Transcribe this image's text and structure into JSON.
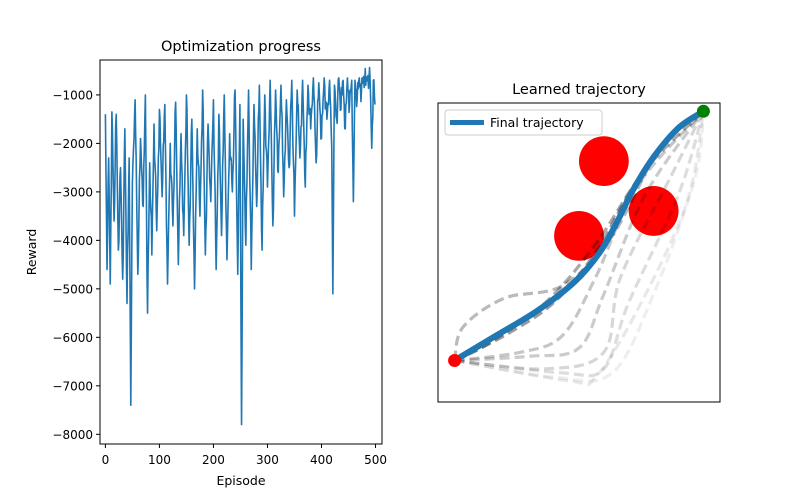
{
  "chart_data": [
    {
      "type": "line",
      "title": "Optimization progress",
      "xlabel": "Episode",
      "ylabel": "Reward",
      "xlim": [
        -10,
        512
      ],
      "ylim": [
        -8200,
        -280
      ],
      "xticks": [
        0,
        100,
        200,
        300,
        400,
        500
      ],
      "yticks": [
        -8000,
        -7000,
        -6000,
        -5000,
        -4000,
        -3000,
        -2000,
        -1000
      ],
      "grid": false,
      "color": "#1f77b4",
      "series": [
        {
          "episodes": 500,
          "anchors": [
            {
              "x": 0,
              "y": -1400
            },
            {
              "x": 3,
              "y": -4600
            },
            {
              "x": 6,
              "y": -2300
            },
            {
              "x": 9,
              "y": -4900
            },
            {
              "x": 12,
              "y": -1350
            },
            {
              "x": 16,
              "y": -3600
            },
            {
              "x": 20,
              "y": -1400
            },
            {
              "x": 24,
              "y": -4200
            },
            {
              "x": 28,
              "y": -2500
            },
            {
              "x": 32,
              "y": -4800
            },
            {
              "x": 36,
              "y": -1700
            },
            {
              "x": 40,
              "y": -5300
            },
            {
              "x": 44,
              "y": -2300
            },
            {
              "x": 47,
              "y": -7400
            },
            {
              "x": 50,
              "y": -2800
            },
            {
              "x": 55,
              "y": -1100
            },
            {
              "x": 60,
              "y": -4700
            },
            {
              "x": 65,
              "y": -1900
            },
            {
              "x": 70,
              "y": -3300
            },
            {
              "x": 74,
              "y": -1000
            },
            {
              "x": 78,
              "y": -5500
            },
            {
              "x": 82,
              "y": -2400
            },
            {
              "x": 86,
              "y": -4300
            },
            {
              "x": 90,
              "y": -1600
            },
            {
              "x": 95,
              "y": -3800
            },
            {
              "x": 100,
              "y": -1300
            },
            {
              "x": 105,
              "y": -3100
            },
            {
              "x": 110,
              "y": -1200
            },
            {
              "x": 115,
              "y": -4900
            },
            {
              "x": 120,
              "y": -2000
            },
            {
              "x": 125,
              "y": -3700
            },
            {
              "x": 130,
              "y": -1150
            },
            {
              "x": 135,
              "y": -4500
            },
            {
              "x": 140,
              "y": -1800
            },
            {
              "x": 145,
              "y": -3900
            },
            {
              "x": 150,
              "y": -1000
            },
            {
              "x": 155,
              "y": -4100
            },
            {
              "x": 160,
              "y": -1500
            },
            {
              "x": 165,
              "y": -5000
            },
            {
              "x": 170,
              "y": -1700
            },
            {
              "x": 175,
              "y": -3500
            },
            {
              "x": 180,
              "y": -900
            },
            {
              "x": 185,
              "y": -4300
            },
            {
              "x": 190,
              "y": -1600
            },
            {
              "x": 195,
              "y": -3200
            },
            {
              "x": 200,
              "y": -1100
            },
            {
              "x": 205,
              "y": -4600
            },
            {
              "x": 210,
              "y": -1400
            },
            {
              "x": 215,
              "y": -3900
            },
            {
              "x": 220,
              "y": -1000
            },
            {
              "x": 225,
              "y": -4400
            },
            {
              "x": 230,
              "y": -1800
            },
            {
              "x": 235,
              "y": -3000
            },
            {
              "x": 240,
              "y": -900
            },
            {
              "x": 245,
              "y": -4700
            },
            {
              "x": 249,
              "y": -1200
            },
            {
              "x": 252,
              "y": -7800
            },
            {
              "x": 255,
              "y": -1500
            },
            {
              "x": 260,
              "y": -4100
            },
            {
              "x": 265,
              "y": -900
            },
            {
              "x": 270,
              "y": -4600
            },
            {
              "x": 275,
              "y": -1200
            },
            {
              "x": 280,
              "y": -3300
            },
            {
              "x": 285,
              "y": -800
            },
            {
              "x": 290,
              "y": -4200
            },
            {
              "x": 295,
              "y": -1000
            },
            {
              "x": 300,
              "y": -2900
            },
            {
              "x": 305,
              "y": -700
            },
            {
              "x": 310,
              "y": -3700
            },
            {
              "x": 315,
              "y": -900
            },
            {
              "x": 320,
              "y": -2600
            },
            {
              "x": 325,
              "y": -800
            },
            {
              "x": 330,
              "y": -3100
            },
            {
              "x": 335,
              "y": -1100
            },
            {
              "x": 340,
              "y": -2500
            },
            {
              "x": 345,
              "y": -700
            },
            {
              "x": 350,
              "y": -3500
            },
            {
              "x": 355,
              "y": -900
            },
            {
              "x": 360,
              "y": -2300
            },
            {
              "x": 365,
              "y": -700
            },
            {
              "x": 370,
              "y": -2900
            },
            {
              "x": 375,
              "y": -800
            },
            {
              "x": 380,
              "y": -1700
            },
            {
              "x": 385,
              "y": -650
            },
            {
              "x": 390,
              "y": -2400
            },
            {
              "x": 395,
              "y": -750
            },
            {
              "x": 400,
              "y": -1900
            },
            {
              "x": 405,
              "y": -650
            },
            {
              "x": 410,
              "y": -1500
            },
            {
              "x": 415,
              "y": -700
            },
            {
              "x": 419,
              "y": -2100
            },
            {
              "x": 421,
              "y": -5100
            },
            {
              "x": 424,
              "y": -800
            },
            {
              "x": 428,
              "y": -1500
            },
            {
              "x": 432,
              "y": -650
            },
            {
              "x": 436,
              "y": -1300
            },
            {
              "x": 440,
              "y": -700
            },
            {
              "x": 444,
              "y": -1700
            },
            {
              "x": 448,
              "y": -650
            },
            {
              "x": 452,
              "y": -1200
            },
            {
              "x": 456,
              "y": -700
            },
            {
              "x": 459,
              "y": -3200
            },
            {
              "x": 462,
              "y": -700
            },
            {
              "x": 466,
              "y": -1100
            },
            {
              "x": 470,
              "y": -650
            },
            {
              "x": 474,
              "y": -900
            },
            {
              "x": 478,
              "y": -620
            },
            {
              "x": 482,
              "y": -800
            },
            {
              "x": 486,
              "y": -600
            },
            {
              "x": 490,
              "y": -700
            },
            {
              "x": 493,
              "y": -2100
            },
            {
              "x": 496,
              "y": -700
            },
            {
              "x": 499,
              "y": -1200
            }
          ]
        }
      ]
    },
    {
      "type": "line",
      "title": "Learned trajectory",
      "xlim": [
        -0.1,
        3.3
      ],
      "ylim": [
        -0.5,
        3.1
      ],
      "axis_ticks": false,
      "legend": {
        "label": "Final trajectory",
        "placement": "top-left"
      },
      "start": {
        "x": 0.1,
        "y": 0.0,
        "color": "#ff0000"
      },
      "goal": {
        "x": 3.1,
        "y": 3.0,
        "color": "#008000"
      },
      "obstacles": [
        {
          "x": 1.9,
          "y": 2.4,
          "r": 0.3,
          "color": "#ff0000"
        },
        {
          "x": 1.6,
          "y": 1.5,
          "r": 0.3,
          "color": "#ff0000"
        },
        {
          "x": 2.5,
          "y": 1.8,
          "r": 0.3,
          "color": "#ff0000"
        }
      ],
      "final_trajectory": {
        "color": "#1f77b4",
        "points": [
          [
            0.1,
            0.0
          ],
          [
            0.6,
            0.3
          ],
          [
            1.1,
            0.6
          ],
          [
            1.55,
            0.95
          ],
          [
            1.85,
            1.3
          ],
          [
            2.05,
            1.65
          ],
          [
            2.25,
            2.05
          ],
          [
            2.5,
            2.45
          ],
          [
            2.8,
            2.8
          ],
          [
            3.1,
            3.0
          ]
        ]
      },
      "candidate_trajectories": [
        {
          "opacity": 0.85,
          "points": [
            [
              0.1,
              0.0
            ],
            [
              0.7,
              0.3
            ],
            [
              1.3,
              0.7
            ],
            [
              1.8,
              1.3
            ],
            [
              2.2,
              2.0
            ],
            [
              2.6,
              2.6
            ],
            [
              3.1,
              3.0
            ]
          ]
        },
        {
          "opacity": 0.75,
          "points": [
            [
              0.1,
              0.0
            ],
            [
              0.5,
              0.2
            ],
            [
              1.2,
              0.7
            ],
            [
              1.8,
              1.4
            ],
            [
              2.4,
              2.3
            ],
            [
              3.1,
              3.0
            ]
          ]
        },
        {
          "opacity": 0.6,
          "points": [
            [
              0.1,
              0.0
            ],
            [
              0.2,
              0.4
            ],
            [
              0.7,
              0.75
            ],
            [
              1.4,
              0.9
            ],
            [
              2.0,
              1.5
            ],
            [
              2.6,
              2.6
            ],
            [
              3.1,
              3.0
            ]
          ]
        },
        {
          "opacity": 0.5,
          "points": [
            [
              0.1,
              0.0
            ],
            [
              0.9,
              0.1
            ],
            [
              1.4,
              0.3
            ],
            [
              1.8,
              1.0
            ],
            [
              2.3,
              2.1
            ],
            [
              3.1,
              3.0
            ]
          ]
        },
        {
          "opacity": 0.45,
          "points": [
            [
              0.1,
              0.0
            ],
            [
              1.0,
              0.05
            ],
            [
              1.6,
              0.15
            ],
            [
              1.9,
              0.8
            ],
            [
              2.4,
              2.0
            ],
            [
              3.1,
              3.0
            ]
          ]
        },
        {
          "opacity": 0.35,
          "points": [
            [
              0.1,
              0.0
            ],
            [
              1.2,
              -0.1
            ],
            [
              1.9,
              0.1
            ],
            [
              2.1,
              1.0
            ],
            [
              2.7,
              2.2
            ],
            [
              3.1,
              3.0
            ]
          ]
        },
        {
          "opacity": 0.3,
          "points": [
            [
              0.1,
              0.0
            ],
            [
              1.4,
              -0.15
            ],
            [
              1.9,
              -0.1
            ],
            [
              2.2,
              0.7
            ],
            [
              2.8,
              2.0
            ],
            [
              3.1,
              3.0
            ]
          ]
        },
        {
          "opacity": 0.2,
          "points": [
            [
              0.1,
              0.0
            ],
            [
              1.5,
              -0.25
            ],
            [
              1.8,
              -0.2
            ],
            [
              2.3,
              0.6
            ],
            [
              2.9,
              1.9
            ],
            [
              3.1,
              3.0
            ]
          ]
        },
        {
          "opacity": 0.15,
          "points": [
            [
              0.1,
              0.0
            ],
            [
              1.3,
              -0.2
            ],
            [
              2.0,
              -0.15
            ],
            [
              2.5,
              0.8
            ],
            [
              3.0,
              2.2
            ],
            [
              3.1,
              3.0
            ]
          ]
        }
      ]
    }
  ]
}
